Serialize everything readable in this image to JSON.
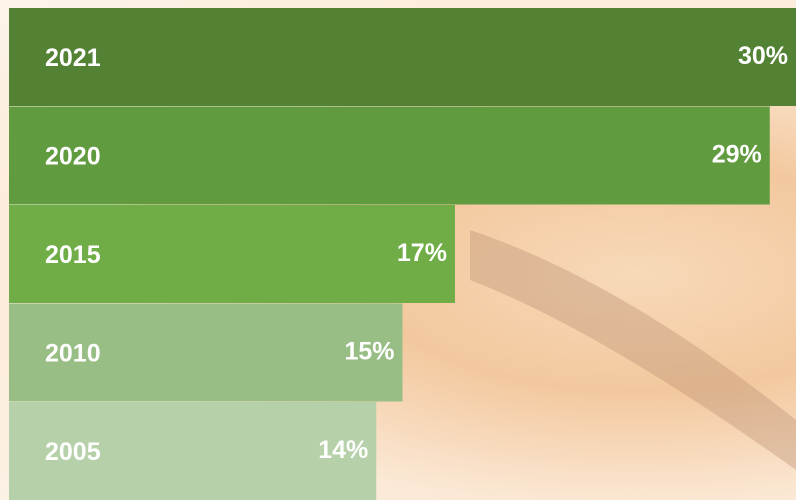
{
  "chart_data": {
    "type": "bar",
    "orientation": "horizontal",
    "categories": [
      "2021",
      "2020",
      "2015",
      "2010",
      "2005"
    ],
    "values": [
      30,
      29,
      17,
      15,
      14
    ],
    "value_labels": [
      "30%",
      "29%",
      "17%",
      "15%",
      "14%"
    ],
    "colors": [
      "#548235",
      "#619b3f",
      "#70ad47",
      "#98be85",
      "#b6d1a9"
    ]
  }
}
